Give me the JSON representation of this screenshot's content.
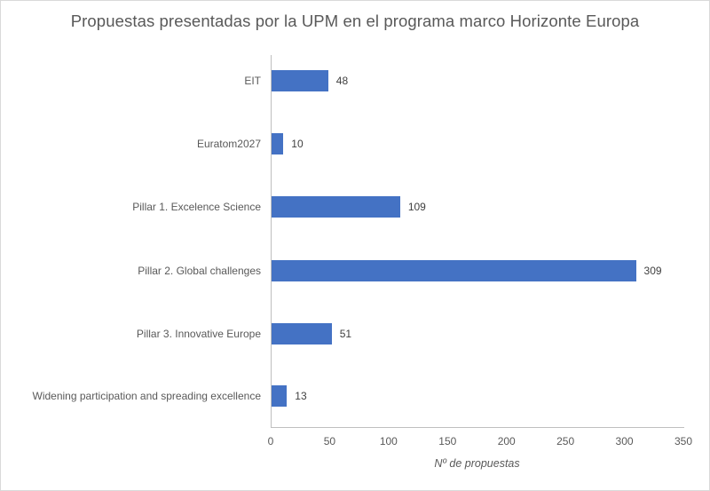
{
  "chart_data": {
    "type": "bar",
    "orientation": "horizontal",
    "title": "Propuestas presentadas por la UPM en el programa marco Horizonte Europa",
    "xlabel": "Nº de propuestas",
    "ylabel": "",
    "categories": [
      "EIT",
      "Euratom2027",
      "Pillar 1. Excelence Science",
      "Pillar 2. Global challenges",
      "Pillar 3. Innovative Europe",
      "Widening participation and spreading excellence"
    ],
    "values": [
      48,
      10,
      109,
      309,
      51,
      13
    ],
    "xlim": [
      0,
      350
    ],
    "xticks": [
      "0",
      "50",
      "100",
      "150",
      "200",
      "250",
      "300",
      "350"
    ],
    "grid": false,
    "legend": null,
    "data_labels": true,
    "bar_color": "#4472c4"
  },
  "labels": {
    "title": "Propuestas presentadas por la UPM en el programa marco Horizonte Europa",
    "xlabel": "Nº de propuestas",
    "cats": [
      "EIT",
      "Euratom2027",
      "Pillar 1. Excelence Science",
      "Pillar 2. Global challenges",
      "Pillar 3. Innovative Europe",
      "Widening participation and spreading excellence"
    ],
    "vals": [
      "48",
      "10",
      "109",
      "309",
      "51",
      "13"
    ],
    "ticks": [
      "0",
      "50",
      "100",
      "150",
      "200",
      "250",
      "300",
      "350"
    ]
  }
}
